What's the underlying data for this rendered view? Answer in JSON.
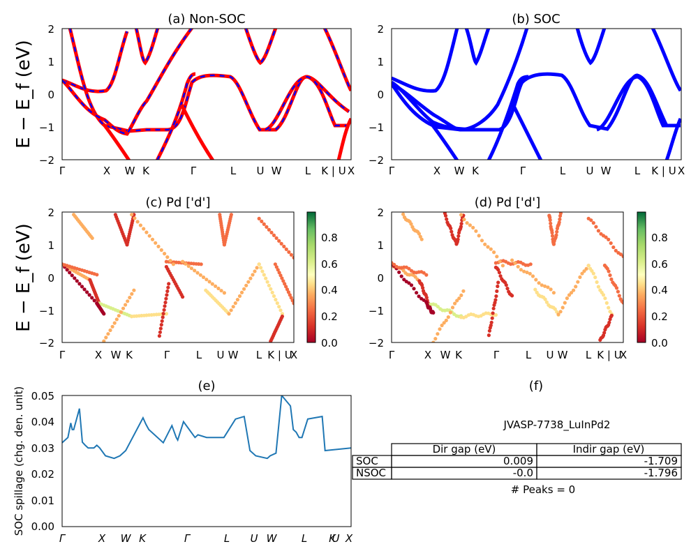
{
  "chart_data": [
    {
      "type": "line",
      "title": "(a) Non-SOC",
      "ylabel": "E − E_f (eV)",
      "ylim": [
        -2,
        2
      ],
      "yticks": [
        "2",
        "1",
        "0",
        "−1",
        "−2"
      ],
      "kpath_labels": [
        "Γ",
        "X",
        "W",
        "K",
        "Γ",
        "L",
        "U",
        "W",
        "L",
        "K | U",
        "X"
      ],
      "series": [
        {
          "color": "#ff0000",
          "dash_color": "#0000ff",
          "x": [
            0,
            0.05,
            0.1,
            0.15,
            0.2,
            0.25
          ],
          "y": [
            0.44,
            0.1,
            -0.6,
            -1.2,
            -1.22,
            -1.18
          ]
        }
      ]
    },
    {
      "type": "line",
      "title": "(b) SOC",
      "ylim": [
        -2,
        2
      ],
      "yticks": [
        "2",
        "1",
        "0",
        "−1",
        "−2"
      ],
      "kpath_labels": [
        "Γ",
        "X",
        "W",
        "K",
        "Γ",
        "L",
        "U",
        "W",
        "L",
        "K | U",
        "X"
      ],
      "series": [
        {
          "color": "#0000ff",
          "x": [
            0,
            0.05,
            0.1,
            0.15,
            0.2,
            0.25
          ],
          "y": [
            0.5,
            0.1,
            -0.65,
            -1.25,
            -1.2,
            -1.18
          ]
        }
      ]
    },
    {
      "type": "scatter",
      "title": "(c)  Pd ['d']",
      "ylabel": "E − E_f (eV)",
      "ylim": [
        -2,
        2
      ],
      "yticks": [
        "2",
        "1",
        "0",
        "−1",
        "−2"
      ],
      "colorbar": {
        "ticks": [
          "0.8",
          "0.6",
          "0.4",
          "0.2",
          "0.0"
        ],
        "range": [
          0,
          0.97
        ],
        "cmap": "RdYlGn"
      },
      "kpath_labels": [
        "Γ",
        "X",
        "W",
        "K",
        "Γ",
        "L",
        "U",
        "W",
        "L",
        "K | U",
        "X"
      ]
    },
    {
      "type": "scatter",
      "title": "(d) Pd ['d']",
      "ylim": [
        -2,
        2
      ],
      "yticks": [
        "2",
        "1",
        "0",
        "−1",
        "−2"
      ],
      "colorbar": {
        "ticks": [
          "0.8",
          "0.6",
          "0.4",
          "0.2",
          "0.0"
        ],
        "range": [
          0,
          0.97
        ],
        "cmap": "RdYlGn"
      },
      "kpath_labels": [
        "Γ",
        "X",
        "W",
        "K",
        "Γ",
        "L",
        "U",
        "W",
        "L",
        "K | U",
        "X"
      ]
    },
    {
      "type": "line",
      "title": "(e)",
      "ylabel": "SOC spillage (chg. den. unit)",
      "ylim": [
        0,
        0.05
      ],
      "yticks": [
        "0.05",
        "0.04",
        "0.03",
        "0.02",
        "0.01",
        "0.00"
      ],
      "kpath_labels": [
        "Γ",
        "X",
        "W",
        "K",
        "Γ",
        "L",
        "U",
        "W",
        "L",
        "K",
        "U",
        "X"
      ],
      "series": [
        {
          "color": "#1f77b4",
          "x": [
            0,
            0.02,
            0.03,
            0.035,
            0.04,
            0.06,
            0.07,
            0.08,
            0.09,
            0.11,
            0.12,
            0.13,
            0.15,
            0.18,
            0.2,
            0.22,
            0.28,
            0.29,
            0.3,
            0.35,
            0.38,
            0.395,
            0.4,
            0.42,
            0.46,
            0.47,
            0.5,
            0.55,
            0.56,
            0.6,
            0.63,
            0.65,
            0.67,
            0.71,
            0.72,
            0.74,
            0.76,
            0.79,
            0.8,
            0.81,
            0.82,
            0.83,
            0.85,
            0.9,
            0.91,
            1
          ],
          "y": [
            0.032,
            0.034,
            0.0395,
            0.037,
            0.037,
            0.045,
            0.0322,
            0.031,
            0.03,
            0.03,
            0.031,
            0.03,
            0.027,
            0.026,
            0.027,
            0.029,
            0.0415,
            0.039,
            0.037,
            0.032,
            0.0385,
            0.034,
            0.033,
            0.04,
            0.034,
            0.035,
            0.034,
            0.034,
            0.034,
            0.041,
            0.042,
            0.029,
            0.027,
            0.026,
            0.027,
            0.028,
            0.05,
            0.046,
            0.037,
            0.036,
            0.034,
            0.034,
            0.041,
            0.042,
            0.029,
            0.03
          ]
        }
      ]
    },
    {
      "type": "table",
      "title": "(f)",
      "caption": "JVASP-7738_LuInPd2",
      "columns": [
        "Dir gap (eV)",
        "Indir gap (eV)"
      ],
      "rows": [
        {
          "label": "SOC",
          "values": [
            "0.009",
            "-1.709"
          ]
        },
        {
          "label": "NSOC",
          "values": [
            "-0.0",
            "-1.796"
          ]
        }
      ],
      "footer": "# Peaks = 0"
    }
  ]
}
